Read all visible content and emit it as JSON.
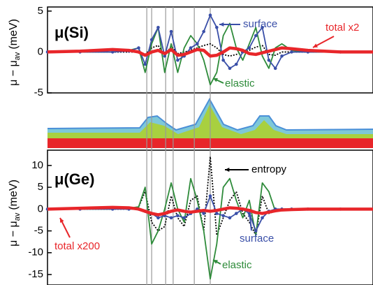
{
  "chart_data": [
    {
      "type": "line",
      "title": "μ(Si)",
      "ylabel": {
        "main": "μ − μ",
        "sub": "av",
        "unit": "(meV)"
      },
      "x": [
        0,
        10,
        20,
        25,
        28,
        30,
        32,
        34,
        36,
        38,
        40,
        42,
        44,
        46,
        48,
        50,
        52,
        54,
        56,
        58,
        60,
        62,
        64,
        66,
        68,
        70,
        72,
        75,
        80,
        90,
        100
      ],
      "xlim": [
        0,
        100
      ],
      "ylim": [
        -5,
        5.5
      ],
      "yticks": [
        5,
        0,
        -5
      ],
      "vlines": [
        30.5,
        32,
        36.3,
        38.6,
        45.1,
        50
      ],
      "series": [
        {
          "color": "#000000",
          "dotted": true,
          "values": [
            0,
            0,
            0,
            0,
            0,
            -0.3,
            0.5,
            0.8,
            -0.5,
            0.7,
            -0.2,
            0,
            0.2,
            0.5,
            0.8,
            1,
            0.5,
            -0.3,
            -0.5,
            -0.3,
            0,
            0.2,
            0.6,
            0.8,
            -0.3,
            -0.4,
            0,
            0,
            0,
            0,
            0
          ]
        },
        {
          "name": "elastic",
          "color": "#2e8b3a",
          "values": [
            0,
            0,
            0,
            0.2,
            0.5,
            -2.5,
            1,
            3,
            -2.5,
            1,
            -2.5,
            0.5,
            2,
            1,
            -1,
            -4,
            -2.5,
            2,
            3.5,
            0.5,
            -1,
            1,
            3,
            -0.5,
            -2,
            0.5,
            1,
            0.2,
            0,
            0,
            0
          ]
        },
        {
          "name": "surface",
          "color": "#3a4fa8",
          "markers": true,
          "values": [
            0,
            0,
            0,
            0.1,
            0.5,
            -1.5,
            1.5,
            3,
            -0.5,
            2.5,
            -1,
            -0.5,
            0.5,
            1,
            2.5,
            4.5,
            3,
            -1,
            -2,
            -1.5,
            0,
            0.5,
            2,
            3,
            -1,
            -2,
            -0.5,
            0,
            0,
            0,
            0
          ]
        },
        {
          "name": "total x2",
          "color": "#e8262a",
          "thick": true,
          "values": [
            0,
            0.1,
            0.3,
            0.2,
            0,
            -0.4,
            0,
            0.2,
            -0.2,
            0.3,
            -0.4,
            -0.3,
            0,
            0.3,
            0.2,
            -0.5,
            -0.4,
            0,
            0.5,
            0.4,
            0.2,
            -0.2,
            -0.3,
            -0.1,
            0.1,
            0.3,
            0.5,
            0.4,
            0.2,
            0,
            0
          ]
        }
      ]
    },
    {
      "type": "line",
      "title": "μ(Ge)",
      "ylabel": {
        "main": "μ − μ",
        "sub": "av",
        "unit": "(meV)"
      },
      "x": [
        0,
        10,
        20,
        25,
        28,
        30,
        32,
        34,
        36,
        38,
        40,
        42,
        44,
        46,
        48,
        50,
        52,
        54,
        56,
        58,
        60,
        62,
        64,
        66,
        68,
        70,
        72,
        75,
        80,
        90,
        100
      ],
      "xlim": [
        0,
        100
      ],
      "ylim": [
        -17.4,
        13.5
      ],
      "yticks": [
        10,
        5,
        0,
        -5,
        -10,
        -15
      ],
      "vlines": [
        30.5,
        32,
        36.3,
        38.6,
        45.1,
        50
      ],
      "series": [
        {
          "name": "entropy",
          "color": "#000000",
          "dotted": true,
          "values": [
            0,
            0,
            0,
            0,
            0.5,
            4,
            -3,
            -5,
            -4,
            3,
            -2,
            -4,
            2,
            3,
            -5,
            12,
            -6,
            -2,
            2,
            4,
            -1,
            -3,
            -6,
            3,
            -1,
            -0.5,
            0,
            0,
            0,
            0,
            0
          ]
        },
        {
          "name": "elastic",
          "color": "#2e8b3a",
          "values": [
            0,
            0,
            0,
            0.2,
            0.5,
            5,
            -8,
            -5,
            0,
            6,
            0,
            -3,
            7,
            2,
            -5,
            -16,
            -8,
            5,
            7,
            2,
            -2,
            2,
            -6,
            6,
            4,
            -0.5,
            0,
            0,
            0,
            0,
            0
          ]
        },
        {
          "name": "surface",
          "color": "#3a4fa8",
          "markers": true,
          "values": [
            0,
            0,
            0,
            0,
            0,
            -0.5,
            -1,
            -2,
            -1.5,
            -2,
            -1.5,
            -2,
            -1,
            0,
            -1,
            3,
            -1,
            -1.5,
            -2,
            -1,
            0,
            -1,
            -5,
            -2,
            -0.5,
            0,
            0,
            0,
            0,
            0,
            0
          ]
        },
        {
          "name": "total x200",
          "color": "#e8262a",
          "thick": true,
          "values": [
            0,
            0.2,
            0.4,
            0.3,
            0,
            -0.5,
            -1,
            -1.3,
            -1,
            -0.5,
            -0.2,
            -0.5,
            -0.7,
            -0.5,
            -0.3,
            -0.5,
            -0.3,
            0,
            0.3,
            0.2,
            0,
            -0.3,
            -0.8,
            -1,
            -0.7,
            -0.4,
            -0.2,
            -0.1,
            0,
            0,
            0
          ]
        }
      ]
    }
  ]
}
